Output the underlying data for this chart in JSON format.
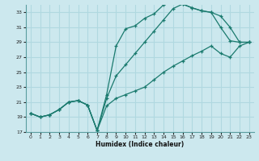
{
  "xlabel": "Humidex (Indice chaleur)",
  "bg_color": "#cce8ee",
  "grid_color": "#b0d8e0",
  "line_color": "#1a7a6e",
  "xlim": [
    -0.5,
    23.5
  ],
  "ylim": [
    17,
    34
  ],
  "xticks": [
    0,
    1,
    2,
    3,
    4,
    5,
    6,
    7,
    8,
    9,
    10,
    11,
    12,
    13,
    14,
    15,
    16,
    17,
    18,
    19,
    20,
    21,
    22,
    23
  ],
  "yticks": [
    17,
    19,
    21,
    23,
    25,
    27,
    29,
    31,
    33
  ],
  "line1_x": [
    0,
    1,
    2,
    3,
    4,
    5,
    6,
    7,
    8,
    9,
    10,
    11,
    12,
    13,
    14,
    15,
    16,
    17,
    18,
    19,
    20,
    21,
    22,
    23
  ],
  "line1_y": [
    19.5,
    19.0,
    19.3,
    20.0,
    21.0,
    21.2,
    20.6,
    17.2,
    22.0,
    28.5,
    30.8,
    31.2,
    32.2,
    32.8,
    34.0,
    34.4,
    34.1,
    33.6,
    33.2,
    33.0,
    31.0,
    29.2,
    29.0,
    29.0
  ],
  "line2_x": [
    0,
    1,
    2,
    3,
    4,
    5,
    6,
    7,
    8,
    9,
    10,
    11,
    12,
    13,
    14,
    15,
    16,
    17,
    18,
    19,
    20,
    21,
    22,
    23
  ],
  "line2_y": [
    19.5,
    19.0,
    19.3,
    20.0,
    21.0,
    21.2,
    20.6,
    17.2,
    21.5,
    24.5,
    26.0,
    27.5,
    29.0,
    30.5,
    32.0,
    33.5,
    34.1,
    33.6,
    33.2,
    33.0,
    32.5,
    31.0,
    29.0,
    29.0
  ],
  "line3_x": [
    0,
    1,
    2,
    3,
    4,
    5,
    6,
    7,
    8,
    9,
    10,
    11,
    12,
    13,
    14,
    15,
    16,
    17,
    18,
    19,
    20,
    21,
    22,
    23
  ],
  "line3_y": [
    19.5,
    19.0,
    19.3,
    20.0,
    21.0,
    21.2,
    20.6,
    17.2,
    20.5,
    21.5,
    22.0,
    22.5,
    23.0,
    24.0,
    25.0,
    25.8,
    26.5,
    27.2,
    27.8,
    28.5,
    27.5,
    27.0,
    28.5,
    29.0
  ]
}
